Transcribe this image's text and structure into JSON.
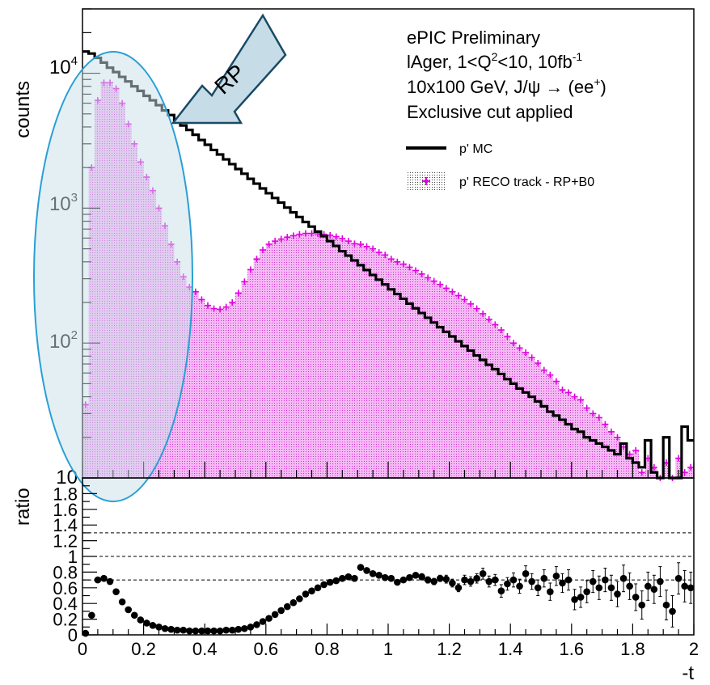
{
  "chart_data": {
    "type": "line",
    "x_domain": [
      0,
      2
    ],
    "top_panel": {
      "ylabel": "counts",
      "yscale": "log",
      "ylim": [
        10,
        30000
      ],
      "y_tick_labels": [
        {
          "base": "10",
          "exp": "4",
          "value": 10000
        },
        {
          "base": "10",
          "exp": "3",
          "value": 1000
        },
        {
          "base": "10",
          "exp": "2",
          "value": 100
        },
        {
          "base": "10",
          "exp": "",
          "value": 10
        }
      ],
      "annotation_lines": [
        {
          "text": "ePIC Preliminary"
        },
        {
          "text": "lAger, 1<Q",
          "sup1": "2",
          "mid": "<10, 10fb",
          "sup2": "-1"
        },
        {
          "text": "10x100 GeV, J/ψ → (ee",
          "sup1": "+",
          "tail": ")"
        },
        {
          "text": "Exclusive cut applied"
        }
      ],
      "callout_label": "RP",
      "legend": [
        {
          "label": "p' MC",
          "style": "line",
          "color": "#000000"
        },
        {
          "label": "p' RECO track - RP+B0",
          "style": "filled-marker",
          "color": "#e000e0"
        }
      ],
      "series": [
        {
          "name": "p' MC",
          "style": "histogram-step",
          "color": "#000000",
          "x": [
            0.01,
            0.03,
            0.05,
            0.07,
            0.09,
            0.11,
            0.13,
            0.15,
            0.17,
            0.19,
            0.21,
            0.23,
            0.25,
            0.27,
            0.29,
            0.31,
            0.33,
            0.35,
            0.37,
            0.39,
            0.41,
            0.43,
            0.45,
            0.47,
            0.49,
            0.51,
            0.53,
            0.55,
            0.57,
            0.59,
            0.61,
            0.63,
            0.65,
            0.67,
            0.69,
            0.71,
            0.73,
            0.75,
            0.77,
            0.79,
            0.81,
            0.83,
            0.85,
            0.87,
            0.89,
            0.91,
            0.93,
            0.95,
            0.97,
            0.99,
            1.01,
            1.03,
            1.05,
            1.07,
            1.09,
            1.11,
            1.13,
            1.15,
            1.17,
            1.19,
            1.21,
            1.23,
            1.25,
            1.27,
            1.29,
            1.31,
            1.33,
            1.35,
            1.37,
            1.39,
            1.41,
            1.43,
            1.45,
            1.47,
            1.49,
            1.51,
            1.53,
            1.55,
            1.57,
            1.59,
            1.61,
            1.63,
            1.65,
            1.67,
            1.69,
            1.71,
            1.73,
            1.75,
            1.77,
            1.79,
            1.81,
            1.83,
            1.85,
            1.87,
            1.89,
            1.91,
            1.93,
            1.95,
            1.97,
            1.99
          ],
          "y": [
            14500,
            14000,
            13000,
            12000,
            11000,
            10200,
            9400,
            8700,
            8000,
            7400,
            6800,
            6300,
            5800,
            5300,
            4900,
            4500,
            4100,
            3800,
            3500,
            3200,
            2950,
            2700,
            2500,
            2300,
            2120,
            1950,
            1800,
            1650,
            1520,
            1400,
            1290,
            1190,
            1100,
            1010,
            930,
            860,
            790,
            730,
            670,
            620,
            570,
            525,
            480,
            445,
            410,
            378,
            348,
            320,
            295,
            272,
            250,
            231,
            213,
            196,
            181,
            167,
            154,
            142,
            131,
            121,
            112,
            103,
            95,
            88,
            81,
            75,
            69,
            64,
            59,
            54,
            50,
            46,
            43,
            40,
            37,
            34,
            31,
            29,
            27,
            25,
            23,
            22,
            20,
            19,
            18,
            17,
            16,
            15,
            18,
            14,
            13,
            12,
            19,
            11,
            10,
            20,
            10,
            9,
            24,
            19
          ]
        },
        {
          "name": "p' RECO track - RP+B0",
          "style": "filled-markers",
          "color": "#e000e0",
          "x": [
            0.01,
            0.03,
            0.05,
            0.07,
            0.09,
            0.11,
            0.13,
            0.15,
            0.17,
            0.19,
            0.21,
            0.23,
            0.25,
            0.27,
            0.29,
            0.31,
            0.33,
            0.35,
            0.37,
            0.39,
            0.41,
            0.43,
            0.45,
            0.47,
            0.49,
            0.51,
            0.53,
            0.55,
            0.57,
            0.59,
            0.61,
            0.63,
            0.65,
            0.67,
            0.69,
            0.71,
            0.73,
            0.75,
            0.77,
            0.79,
            0.81,
            0.83,
            0.85,
            0.87,
            0.89,
            0.91,
            0.93,
            0.95,
            0.97,
            0.99,
            1.01,
            1.03,
            1.05,
            1.07,
            1.09,
            1.11,
            1.13,
            1.15,
            1.17,
            1.19,
            1.21,
            1.23,
            1.25,
            1.27,
            1.29,
            1.31,
            1.33,
            1.35,
            1.37,
            1.39,
            1.41,
            1.43,
            1.45,
            1.47,
            1.49,
            1.51,
            1.53,
            1.55,
            1.57,
            1.59,
            1.61,
            1.63,
            1.65,
            1.67,
            1.69,
            1.71,
            1.73,
            1.75,
            1.77,
            1.79,
            1.81,
            1.83,
            1.85,
            1.87,
            1.89,
            1.91,
            1.93,
            1.95,
            1.97,
            1.99
          ],
          "y": [
            35,
            2000,
            6300,
            8500,
            8500,
            7700,
            6000,
            4200,
            3000,
            2200,
            1700,
            1350,
            1000,
            740,
            540,
            400,
            310,
            260,
            240,
            210,
            190,
            180,
            178,
            185,
            200,
            235,
            285,
            350,
            420,
            490,
            540,
            570,
            590,
            610,
            625,
            640,
            650,
            650,
            645,
            640,
            630,
            615,
            595,
            570,
            545,
            540,
            520,
            500,
            470,
            450,
            420,
            400,
            385,
            365,
            345,
            325,
            305,
            288,
            272,
            255,
            240,
            225,
            210,
            195,
            180,
            165,
            150,
            137,
            125,
            112,
            100,
            92,
            85,
            78,
            71,
            63,
            58,
            52,
            45,
            43,
            40,
            38,
            33,
            30,
            28,
            25,
            22,
            20,
            17,
            15,
            16,
            11,
            14,
            12,
            10,
            13,
            8,
            14,
            11,
            12
          ]
        }
      ]
    },
    "bottom_panel": {
      "ylabel": "ratio",
      "ylim": [
        0,
        2
      ],
      "y_tick_labels": [
        "0",
        "0.2",
        "0.4",
        "0.6",
        "0.8",
        "1",
        "1.2",
        "1.4",
        "1.6",
        "1.8"
      ],
      "x_tick_labels": [
        "0",
        "0.2",
        "0.4",
        "0.6",
        "0.8",
        "1",
        "1.2",
        "1.4",
        "1.6",
        "1.8",
        "2"
      ],
      "xlabel": "-t",
      "reference_lines": [
        0.7,
        1.0,
        1.3
      ],
      "series": [
        {
          "name": "ratio",
          "style": "points-with-errors",
          "color": "#000000",
          "x": [
            0.01,
            0.03,
            0.05,
            0.07,
            0.09,
            0.11,
            0.13,
            0.15,
            0.17,
            0.19,
            0.21,
            0.23,
            0.25,
            0.27,
            0.29,
            0.31,
            0.33,
            0.35,
            0.37,
            0.39,
            0.41,
            0.43,
            0.45,
            0.47,
            0.49,
            0.51,
            0.53,
            0.55,
            0.57,
            0.59,
            0.61,
            0.63,
            0.65,
            0.67,
            0.69,
            0.71,
            0.73,
            0.75,
            0.77,
            0.79,
            0.81,
            0.83,
            0.85,
            0.87,
            0.89,
            0.91,
            0.93,
            0.95,
            0.97,
            0.99,
            1.01,
            1.03,
            1.05,
            1.07,
            1.09,
            1.11,
            1.13,
            1.15,
            1.17,
            1.19,
            1.21,
            1.23,
            1.25,
            1.27,
            1.29,
            1.31,
            1.33,
            1.35,
            1.37,
            1.39,
            1.41,
            1.43,
            1.45,
            1.47,
            1.49,
            1.51,
            1.53,
            1.55,
            1.57,
            1.59,
            1.61,
            1.63,
            1.65,
            1.67,
            1.69,
            1.71,
            1.73,
            1.75,
            1.77,
            1.79,
            1.81,
            1.83,
            1.85,
            1.87,
            1.89,
            1.91,
            1.93,
            1.95,
            1.97,
            1.99
          ],
          "y": [
            0.02,
            0.25,
            0.7,
            0.72,
            0.68,
            0.55,
            0.42,
            0.32,
            0.25,
            0.19,
            0.15,
            0.12,
            0.1,
            0.08,
            0.07,
            0.06,
            0.06,
            0.05,
            0.05,
            0.05,
            0.05,
            0.05,
            0.05,
            0.06,
            0.06,
            0.07,
            0.08,
            0.1,
            0.13,
            0.17,
            0.21,
            0.26,
            0.31,
            0.36,
            0.41,
            0.46,
            0.52,
            0.56,
            0.6,
            0.64,
            0.67,
            0.69,
            0.72,
            0.74,
            0.72,
            0.86,
            0.82,
            0.78,
            0.76,
            0.73,
            0.72,
            0.67,
            0.7,
            0.73,
            0.76,
            0.74,
            0.7,
            0.68,
            0.72,
            0.71,
            0.66,
            0.6,
            0.7,
            0.68,
            0.72,
            0.78,
            0.68,
            0.7,
            0.56,
            0.65,
            0.7,
            0.62,
            0.78,
            0.68,
            0.6,
            0.72,
            0.55,
            0.75,
            0.66,
            0.7,
            0.45,
            0.48,
            0.55,
            0.68,
            0.6,
            0.7,
            0.6,
            0.52,
            0.72,
            0.62,
            0.48,
            0.38,
            0.62,
            0.58,
            0.68,
            0.38,
            0.3,
            0.72,
            0.62,
            0.6
          ],
          "err": [
            0.01,
            0.03,
            0.03,
            0.03,
            0.02,
            0.02,
            0.02,
            0.02,
            0.02,
            0.02,
            0.01,
            0.01,
            0.01,
            0.01,
            0.01,
            0.01,
            0.01,
            0.01,
            0.01,
            0.01,
            0.01,
            0.01,
            0.01,
            0.01,
            0.01,
            0.01,
            0.01,
            0.01,
            0.01,
            0.01,
            0.01,
            0.01,
            0.01,
            0.01,
            0.01,
            0.01,
            0.01,
            0.01,
            0.01,
            0.01,
            0.01,
            0.01,
            0.01,
            0.02,
            0.02,
            0.02,
            0.02,
            0.02,
            0.02,
            0.02,
            0.03,
            0.03,
            0.03,
            0.03,
            0.03,
            0.04,
            0.04,
            0.04,
            0.04,
            0.05,
            0.05,
            0.05,
            0.06,
            0.06,
            0.06,
            0.07,
            0.07,
            0.07,
            0.08,
            0.08,
            0.09,
            0.09,
            0.1,
            0.1,
            0.1,
            0.11,
            0.11,
            0.12,
            0.12,
            0.13,
            0.13,
            0.13,
            0.14,
            0.14,
            0.15,
            0.15,
            0.16,
            0.16,
            0.17,
            0.17,
            0.17,
            0.18,
            0.18,
            0.18,
            0.19,
            0.19,
            0.2,
            0.2,
            0.2,
            0.2
          ]
        }
      ]
    }
  }
}
